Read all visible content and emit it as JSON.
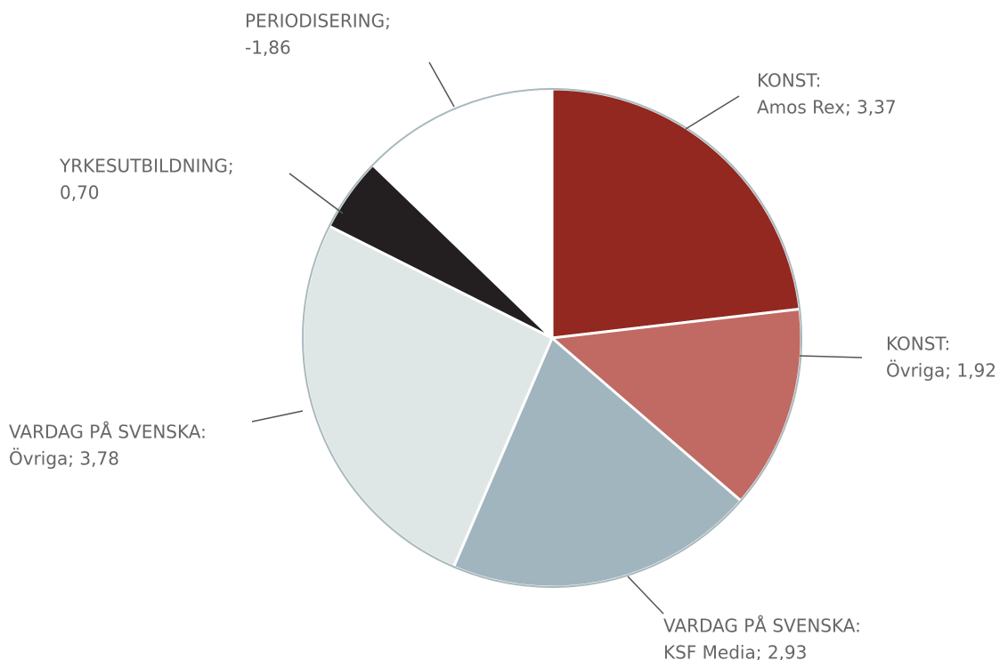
{
  "chart_data": {
    "type": "pie",
    "categories": [
      "KONST:",
      "KONST:",
      "VARDAG PÅ SVENSKA:",
      "VARDAG PÅ SVENSKA:",
      "YRKESUTBILDNING;",
      "PERIODISERING;"
    ],
    "values": [
      3.37,
      1.92,
      2.93,
      3.78,
      0.7,
      -1.86
    ],
    "value_labels": [
      "Amos Rex; 3,37",
      "Övriga; 1,92",
      "KSF Media; 2,93",
      "Övriga; 3,78",
      "0,70",
      "-1,86"
    ],
    "colors": [
      "#922820",
      "#c06a63",
      "#a0b5be",
      "#dfe6e6",
      "#231f20",
      "#ffffff"
    ]
  }
}
